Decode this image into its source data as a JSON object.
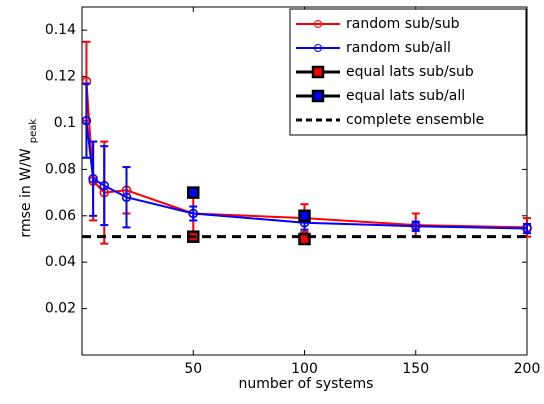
{
  "chart_data": {
    "type": "line",
    "xlabel": "number of systems",
    "ylabel": "rmse in W/W",
    "ylabel_sub": "peak",
    "xlim": [
      0,
      200
    ],
    "xticks": [
      50,
      100,
      150,
      200
    ],
    "ylim": [
      0,
      0.15
    ],
    "yticks": [
      0.02,
      0.04,
      0.06,
      0.08,
      0.1,
      0.12,
      0.14
    ],
    "legend": "upper right",
    "series": [
      {
        "name": "random sub/sub",
        "color": "#ff0000",
        "style": "line",
        "x": [
          2,
          5,
          10,
          20,
          50,
          100,
          150,
          200
        ],
        "values": [
          0.118,
          0.075,
          0.07,
          0.071,
          0.061,
          0.059,
          0.056,
          0.055
        ],
        "errors": [
          0.017,
          0.017,
          0.022,
          0.01,
          0.011,
          0.006,
          0.005,
          0.004
        ]
      },
      {
        "name": "random sub/all",
        "color": "#0000ff",
        "style": "line",
        "x": [
          2,
          5,
          10,
          20,
          50,
          100,
          150,
          200
        ],
        "values": [
          0.101,
          0.076,
          0.073,
          0.068,
          0.061,
          0.057,
          0.0555,
          0.0545
        ],
        "errors": [
          0.016,
          0.016,
          0.017,
          0.013,
          0.003,
          0.003,
          0.002,
          0.002
        ]
      },
      {
        "name": "equal lats sub/sub",
        "color": "#000000",
        "face": "#ff0000",
        "style": "square",
        "x": [
          50,
          100
        ],
        "values": [
          0.051,
          0.05
        ]
      },
      {
        "name": "equal lats sub/all",
        "color": "#000000",
        "face": "#0000ff",
        "style": "square",
        "x": [
          50,
          100
        ],
        "values": [
          0.07,
          0.06
        ]
      },
      {
        "name": "complete ensemble",
        "color": "#000000",
        "style": "dashed",
        "values": [
          0.051
        ]
      }
    ]
  }
}
